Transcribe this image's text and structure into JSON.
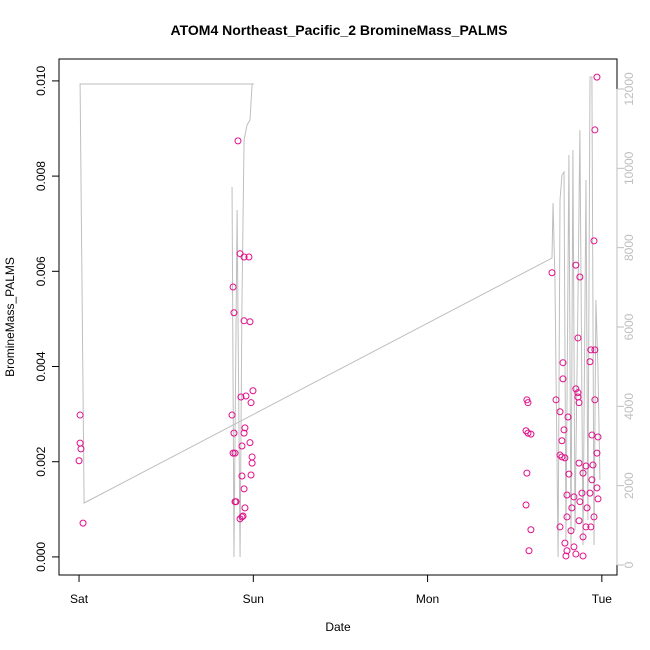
{
  "chart_data": {
    "type": "scatter",
    "title": "ATOM4 Northeast_Pacific_2 BromineMass_PALMS",
    "x_label": "Date",
    "y_label": "BromineMass_PALMS",
    "xlim": [
      -0.115,
      3.087
    ],
    "xticks": [
      {
        "value": 0,
        "label": "Sat"
      },
      {
        "value": 1,
        "label": "Sun"
      },
      {
        "value": 2,
        "label": "Mon"
      },
      {
        "value": 3,
        "label": "Tue"
      }
    ],
    "ylim": [
      -0.00038,
      0.01046
    ],
    "yticks": [
      {
        "value": 0,
        "label": "0.000"
      },
      {
        "value": 0.002,
        "label": "0.002"
      },
      {
        "value": 0.004,
        "label": "0.004"
      },
      {
        "value": 0.006,
        "label": "0.006"
      },
      {
        "value": 0.008,
        "label": "0.008"
      },
      {
        "value": 0.01,
        "label": "0.010"
      }
    ],
    "y2lim": [
      -252,
      12756
    ],
    "y2ticks": [
      0,
      2000,
      4000,
      6000,
      8000,
      10000,
      12000
    ],
    "y2tick_color": "#bebebe",
    "series": [
      {
        "color": "#e0108a",
        "x": [
          0.006,
          0.006,
          0.011,
          0,
          0.023,
          0.912,
          0.924,
          0.947,
          0.975,
          0.884,
          0.889,
          0.947,
          0.981,
          0.998,
          0.958,
          0.929,
          0.878,
          0.987,
          0.952,
          0.947,
          0.889,
          0.981,
          0.935,
          0.884,
          0.895,
          0.993,
          0.993,
          0.987,
          0.935,
          0.947,
          0.901,
          0.895,
          0.952,
          0.941,
          0.924,
          0.935,
          2.714,
          2.972,
          2.96,
          2.955,
          2.851,
          2.874,
          2.863,
          2.937,
          2.96,
          2.777,
          2.932,
          2.777,
          2.851,
          2.863,
          2.863,
          2.57,
          2.576,
          2.737,
          2.869,
          2.96,
          2.76,
          2.806,
          2.565,
          2.576,
          2.783,
          2.593,
          2.943,
          2.978,
          2.771,
          2.972,
          2.76,
          2.788,
          2.771,
          2.869,
          2.949,
          2.909,
          2.892,
          2.943,
          2.57,
          2.811,
          2.972,
          2.8,
          2.84,
          2.886,
          2.932,
          2.978,
          2.874,
          2.828,
          2.915,
          2.565,
          2.8,
          2.869,
          2.955,
          2.909,
          2.76,
          2.593,
          2.823,
          2.892,
          2.937,
          2.788,
          2.582,
          2.8,
          2.851,
          2.794,
          2.892,
          2.84
        ],
        "values": [
          0.00298,
          0.00239,
          0.00227,
          0.00202,
          0.00071,
          0.00874,
          0.00637,
          0.0063,
          0.0063,
          0.00567,
          0.00513,
          0.00496,
          0.00494,
          0.00349,
          0.00338,
          0.00336,
          0.00298,
          0.00324,
          0.00271,
          0.0026,
          0.0026,
          0.0024,
          0.00233,
          0.00218,
          0.00218,
          0.0021,
          0.00197,
          0.00172,
          0.0017,
          0.00143,
          0.00116,
          0.00116,
          0.00103,
          0.00086,
          0.0008,
          0.00084,
          0.00597,
          0.01008,
          0.00897,
          0.00664,
          0.00613,
          0.00588,
          0.0046,
          0.00435,
          0.00435,
          0.00408,
          0.0041,
          0.00374,
          0.00353,
          0.00345,
          0.00336,
          0.0033,
          0.00324,
          0.0033,
          0.00324,
          0.0033,
          0.00305,
          0.00294,
          0.00265,
          0.0026,
          0.00267,
          0.00258,
          0.00256,
          0.00252,
          0.00244,
          0.00218,
          0.00214,
          0.00208,
          0.0021,
          0.00197,
          0.00193,
          0.00191,
          0.00176,
          0.00162,
          0.00176,
          0.00174,
          0.00145,
          0.0013,
          0.00126,
          0.00134,
          0.00134,
          0.00122,
          0.00116,
          0.00103,
          0.00103,
          0.00109,
          0.00084,
          0.00076,
          0.00084,
          0.00063,
          0.00063,
          0.00057,
          0.00055,
          0.00042,
          0.00063,
          0.00029,
          0.00013,
          0.00013,
          6e-05,
          2e-05,
          2e-05,
          0.00021
        ]
      },
      {
        "color": "#bebebe",
        "axis": "y2",
        "x": [
          0.878,
          0.889,
          0.907,
          0.924,
          0.935,
          0.947,
          0.964,
          0.981,
          0.993,
          1.004,
          0.006,
          0.029,
          2.714,
          2.72,
          2.731,
          2.749,
          2.76,
          2.771,
          2.783,
          2.794,
          2.811,
          2.823,
          2.834,
          2.846,
          2.863,
          2.874,
          2.892,
          2.909,
          2.92,
          2.932,
          2.943,
          2.955,
          2.966,
          2.978,
          2.989
        ],
        "values": [
          9529,
          202,
          8950,
          202,
          6681,
          10714,
          11092,
          11218,
          12126,
          12126,
          12126,
          1563,
          7739,
          9126,
          7185,
          202,
          9202,
          9832,
          9908,
          630,
          10336,
          504,
          10462,
          882,
          6681,
          10966,
          504,
          9706,
          1134,
          12302,
          12302,
          504,
          6681,
          4916,
          2143
        ]
      }
    ]
  }
}
